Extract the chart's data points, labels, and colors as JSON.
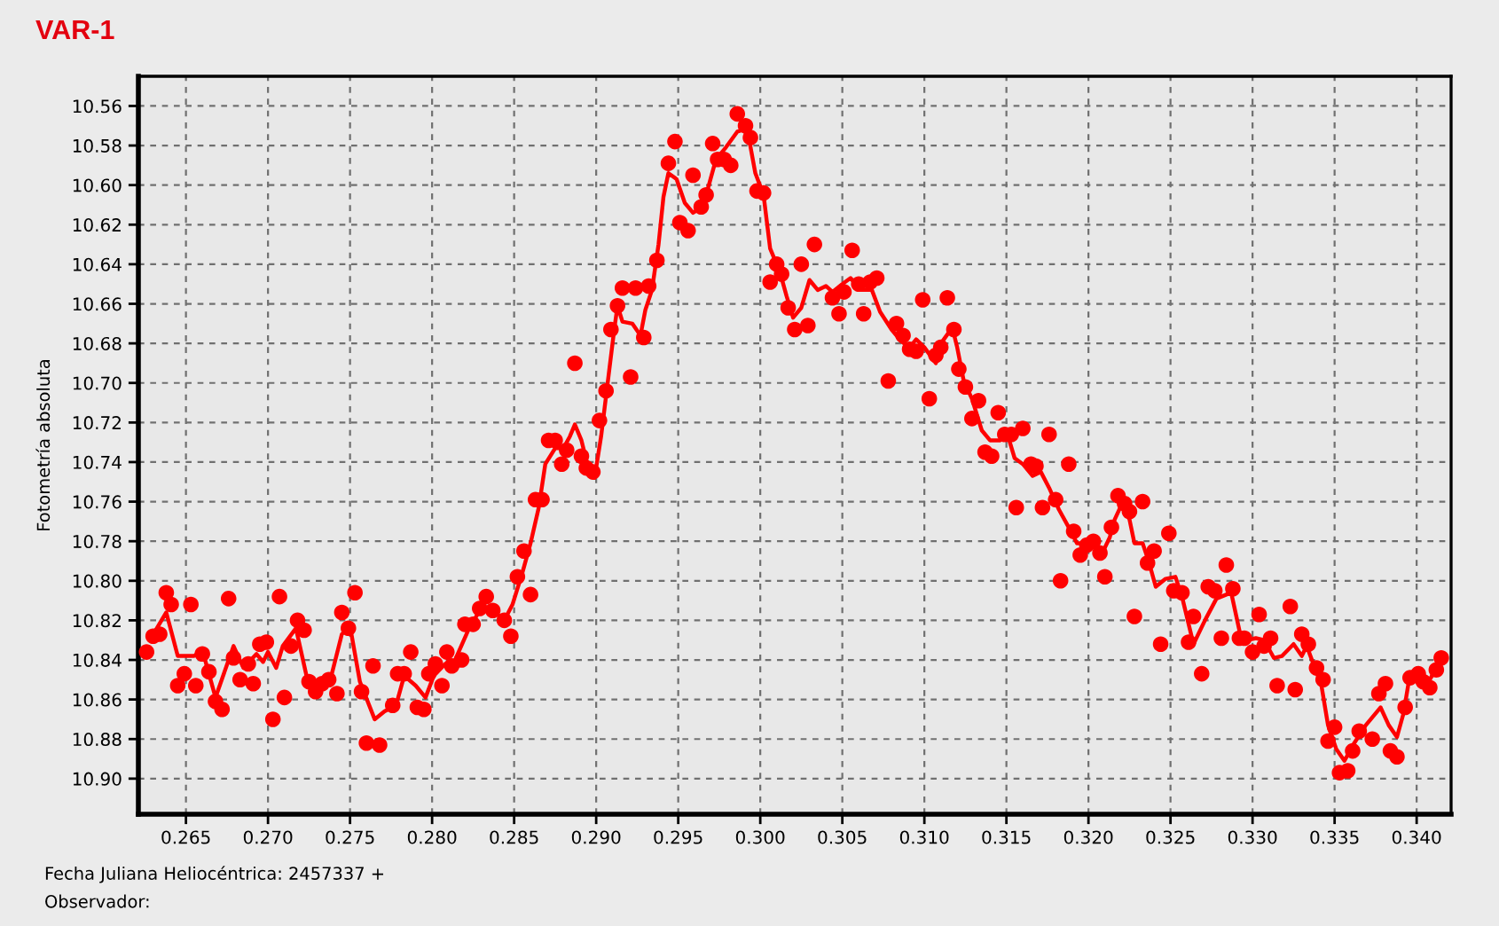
{
  "chart_data": {
    "type": "scatter",
    "title": "VAR-1",
    "xlabel": "Fecha Juliana Heliocéntrica: 2457337 +",
    "ylabel": "Fotometría absoluta",
    "annotations": [
      "Observador:"
    ],
    "xlim": [
      0.2621,
      0.3421
    ],
    "ylim": [
      10.918,
      10.545
    ],
    "xticks": [
      0.265,
      {
        "value": 0.27,
        "label": "0.270"
      },
      0.275,
      {
        "value": 0.28,
        "label": "0.280"
      },
      0.285,
      {
        "value": 0.29,
        "label": "0.290"
      },
      0.295,
      {
        "value": 0.3,
        "label": "0.300"
      },
      0.305,
      {
        "value": 0.31,
        "label": "0.310"
      },
      0.315,
      {
        "value": 0.32,
        "label": "0.320"
      },
      0.325,
      {
        "value": 0.33,
        "label": "0.330"
      },
      0.335,
      {
        "value": 0.34,
        "label": "0.340"
      }
    ],
    "yticks": [
      10.56,
      10.58,
      {
        "value": 10.6,
        "label": "10.60"
      },
      10.62,
      10.64,
      10.66,
      10.68,
      {
        "value": 10.7,
        "label": "10.70"
      },
      10.72,
      10.74,
      10.76,
      10.78,
      {
        "value": 10.8,
        "label": "10.80"
      },
      10.82,
      10.84,
      10.86,
      10.88,
      {
        "value": 10.9,
        "label": "10.90"
      }
    ],
    "grid": true,
    "marker": "circle",
    "series": [
      {
        "color": "#ff0000",
        "x": [
          0.2626,
          0.263,
          0.2634,
          0.2638,
          0.2641,
          0.2645,
          0.2649,
          0.2653,
          0.2656,
          0.266,
          0.2664,
          0.2668,
          0.2672,
          0.2676,
          0.2679,
          0.2683,
          0.2688,
          0.2691,
          0.2695,
          0.2699,
          0.2703,
          0.2707,
          0.271,
          0.2714,
          0.2718,
          0.2722,
          0.2725,
          0.2729,
          0.2733,
          0.2737,
          0.2742,
          0.2745,
          0.2749,
          0.2753,
          0.2757,
          0.276,
          0.2764,
          0.2768,
          0.2776,
          0.2779,
          0.2783,
          0.2787,
          0.2791,
          0.2795,
          0.2798,
          0.2802,
          0.2806,
          0.2809,
          0.2812,
          0.2818,
          0.282,
          0.2825,
          0.2829,
          0.2833,
          0.2837,
          0.2844,
          0.2848,
          0.2852,
          0.2856,
          0.286,
          0.2863,
          0.2867,
          0.2871,
          0.2875,
          0.2879,
          0.2882,
          0.2887,
          0.2891,
          0.2894,
          0.2898,
          0.2902,
          0.2906,
          0.2909,
          0.2913,
          0.2916,
          0.2921,
          0.2924,
          0.2929,
          0.2932,
          0.2937,
          0.2944,
          0.2948,
          0.2951,
          0.2956,
          0.2959,
          0.2964,
          0.2967,
          0.2971,
          0.2974,
          0.2978,
          0.2982,
          0.2986,
          0.2991,
          0.2994,
          0.2998,
          0.3002,
          0.3006,
          0.301,
          0.3013,
          0.3017,
          0.3021,
          0.3025,
          0.3029,
          0.3033,
          0.3044,
          0.3048,
          0.3051,
          0.3056,
          0.306,
          0.3063,
          0.3067,
          0.3071,
          0.3078,
          0.3083,
          0.3087,
          0.3091,
          0.3095,
          0.3099,
          0.3103,
          0.3107,
          0.311,
          0.3114,
          0.3118,
          0.3121,
          0.3125,
          0.3129,
          0.3133,
          0.3137,
          0.3141,
          0.3145,
          0.3149,
          0.3153,
          0.3156,
          0.316,
          0.3165,
          0.3168,
          0.3172,
          0.3176,
          0.318,
          0.3183,
          0.3188,
          0.3191,
          0.3195,
          0.3199,
          0.3203,
          0.3207,
          0.321,
          0.3214,
          0.3218,
          0.3222,
          0.3225,
          0.3228,
          0.3233,
          0.3236,
          0.324,
          0.3244,
          0.3249,
          0.3252,
          0.3257,
          0.3261,
          0.3264,
          0.3269,
          0.3273,
          0.3277,
          0.3281,
          0.3284,
          0.3288,
          0.3292,
          0.3295,
          0.33,
          0.3304,
          0.3307,
          0.3311,
          0.3315,
          0.3323,
          0.3326,
          0.333,
          0.3334,
          0.3339,
          0.3343,
          0.3346,
          0.335,
          0.3353,
          0.3358,
          0.3361,
          0.3365,
          0.3373,
          0.3377,
          0.3381,
          0.3384,
          0.3388,
          0.3393,
          0.3396,
          0.3401,
          0.3404,
          0.3408,
          0.3412,
          0.3415
        ],
        "values": [
          10.836,
          10.828,
          10.827,
          10.806,
          10.812,
          10.853,
          10.847,
          10.812,
          10.853,
          10.837,
          10.846,
          10.861,
          10.865,
          10.809,
          10.839,
          10.85,
          10.842,
          10.852,
          10.832,
          10.831,
          10.87,
          10.808,
          10.859,
          10.833,
          10.82,
          10.825,
          10.851,
          10.856,
          10.852,
          10.85,
          10.857,
          10.816,
          10.824,
          10.806,
          10.856,
          10.882,
          10.843,
          10.883,
          10.863,
          10.847,
          10.847,
          10.836,
          10.864,
          10.865,
          10.847,
          10.842,
          10.853,
          10.836,
          10.843,
          10.84,
          10.822,
          10.822,
          10.814,
          10.808,
          10.815,
          10.82,
          10.828,
          10.798,
          10.785,
          10.807,
          10.759,
          10.759,
          10.729,
          10.729,
          10.741,
          10.734,
          10.69,
          10.737,
          10.743,
          10.745,
          10.719,
          10.704,
          10.673,
          10.661,
          10.652,
          10.697,
          10.652,
          10.677,
          10.651,
          10.638,
          10.589,
          10.578,
          10.619,
          10.623,
          10.595,
          10.611,
          10.605,
          10.579,
          10.587,
          10.587,
          10.59,
          10.564,
          10.57,
          10.576,
          10.603,
          10.604,
          10.649,
          10.64,
          10.645,
          10.662,
          10.673,
          10.64,
          10.671,
          10.63,
          10.657,
          10.665,
          10.654,
          10.633,
          10.65,
          10.665,
          10.649,
          10.647,
          10.699,
          10.67,
          10.676,
          10.683,
          10.684,
          10.658,
          10.708,
          10.686,
          10.682,
          10.657,
          10.673,
          10.693,
          10.702,
          10.718,
          10.709,
          10.735,
          10.737,
          10.715,
          10.726,
          10.726,
          10.763,
          10.723,
          10.741,
          10.742,
          10.763,
          10.726,
          10.759,
          10.8,
          10.741,
          10.775,
          10.787,
          10.782,
          10.78,
          10.786,
          10.798,
          10.773,
          10.757,
          10.761,
          10.765,
          10.818,
          10.76,
          10.791,
          10.785,
          10.832,
          10.776,
          10.805,
          10.806,
          10.831,
          10.818,
          10.847,
          10.803,
          10.805,
          10.829,
          10.792,
          10.804,
          10.829,
          10.829,
          10.836,
          10.817,
          10.833,
          10.829,
          10.853,
          10.813,
          10.855,
          10.827,
          10.832,
          10.844,
          10.85,
          10.881,
          10.874,
          10.897,
          10.896,
          10.886,
          10.876,
          10.88,
          10.857,
          10.852,
          10.886,
          10.889,
          10.864,
          10.849,
          10.847,
          10.851,
          10.854,
          10.845,
          10.839
        ]
      },
      {
        "type": "line",
        "color": "#ff0000",
        "marker": "none",
        "x": [
          0.2628,
          0.2638,
          0.2645,
          0.2655,
          0.266,
          0.2668,
          0.2679,
          0.2685,
          0.2693,
          0.2697,
          0.27,
          0.2705,
          0.2709,
          0.2717,
          0.2724,
          0.2731,
          0.2738,
          0.2745,
          0.275,
          0.2756,
          0.2765,
          0.2771,
          0.2778,
          0.2783,
          0.279,
          0.2796,
          0.2801,
          0.2808,
          0.2813,
          0.2822,
          0.2829,
          0.2837,
          0.2844,
          0.2849,
          0.2855,
          0.286,
          0.2865,
          0.2869,
          0.2875,
          0.288,
          0.2884,
          0.2887,
          0.2891,
          0.2894,
          0.2899,
          0.2903,
          0.2907,
          0.2911,
          0.2913,
          0.2916,
          0.2922,
          0.2927,
          0.293,
          0.2934,
          0.2938,
          0.2941,
          0.2944,
          0.2949,
          0.2954,
          0.2959,
          0.2963,
          0.2968,
          0.2973,
          0.2979,
          0.2986,
          0.299,
          0.2993,
          0.2997,
          0.3002,
          0.3006,
          0.3012,
          0.3016,
          0.302,
          0.3025,
          0.303,
          0.3035,
          0.304,
          0.3044,
          0.305,
          0.3055,
          0.3061,
          0.3068,
          0.3073,
          0.308,
          0.3086,
          0.3091,
          0.3095,
          0.31,
          0.3107,
          0.3111,
          0.3117,
          0.312,
          0.3124,
          0.3129,
          0.3135,
          0.314,
          0.3146,
          0.3151,
          0.3155,
          0.316,
          0.3166,
          0.3171,
          0.3176,
          0.3182,
          0.3188,
          0.3193,
          0.3198,
          0.3204,
          0.3209,
          0.3213,
          0.3216,
          0.3221,
          0.3225,
          0.3228,
          0.3233,
          0.3237,
          0.3241,
          0.3247,
          0.3253,
          0.3257,
          0.3264,
          0.3271,
          0.3278,
          0.3287,
          0.3293,
          0.3297,
          0.3302,
          0.3307,
          0.3313,
          0.3318,
          0.3325,
          0.333,
          0.3333,
          0.3338,
          0.3342,
          0.3346,
          0.3351,
          0.3356,
          0.3362,
          0.3369,
          0.3378,
          0.3383,
          0.3388,
          0.3392,
          0.3396,
          0.3401,
          0.3406,
          0.341,
          0.3415
        ],
        "values": [
          10.83,
          10.816,
          10.838,
          10.838,
          10.835,
          10.859,
          10.833,
          10.844,
          10.837,
          10.841,
          10.836,
          10.844,
          10.833,
          10.824,
          10.85,
          10.854,
          10.85,
          10.827,
          10.823,
          10.851,
          10.87,
          10.866,
          10.863,
          10.848,
          10.853,
          10.859,
          10.848,
          10.842,
          10.842,
          10.825,
          10.815,
          10.815,
          10.82,
          10.812,
          10.796,
          10.781,
          10.763,
          10.741,
          10.733,
          10.733,
          10.727,
          10.721,
          10.729,
          10.739,
          10.748,
          10.727,
          10.7,
          10.673,
          10.661,
          10.669,
          10.67,
          10.676,
          10.663,
          10.653,
          10.63,
          10.606,
          10.594,
          10.597,
          10.609,
          10.614,
          10.612,
          10.602,
          10.587,
          10.581,
          10.573,
          10.572,
          10.576,
          10.594,
          10.605,
          10.632,
          10.644,
          10.656,
          10.667,
          10.662,
          10.648,
          10.653,
          10.651,
          10.654,
          10.65,
          10.647,
          10.653,
          10.653,
          10.664,
          10.673,
          10.679,
          10.682,
          10.678,
          10.682,
          10.69,
          10.679,
          10.672,
          10.682,
          10.699,
          10.708,
          10.724,
          10.729,
          10.729,
          10.727,
          10.738,
          10.741,
          10.747,
          10.745,
          10.753,
          10.764,
          10.773,
          10.781,
          10.781,
          10.781,
          10.785,
          10.778,
          10.769,
          10.76,
          10.769,
          10.781,
          10.781,
          10.791,
          10.803,
          10.799,
          10.798,
          10.808,
          10.832,
          10.82,
          10.809,
          10.806,
          10.829,
          10.83,
          10.829,
          10.83,
          10.839,
          10.838,
          10.832,
          10.838,
          10.833,
          10.844,
          10.853,
          10.873,
          10.885,
          10.891,
          10.882,
          10.873,
          10.864,
          10.873,
          10.879,
          10.867,
          10.847,
          10.848,
          10.853,
          10.847,
          10.839
        ]
      }
    ]
  }
}
